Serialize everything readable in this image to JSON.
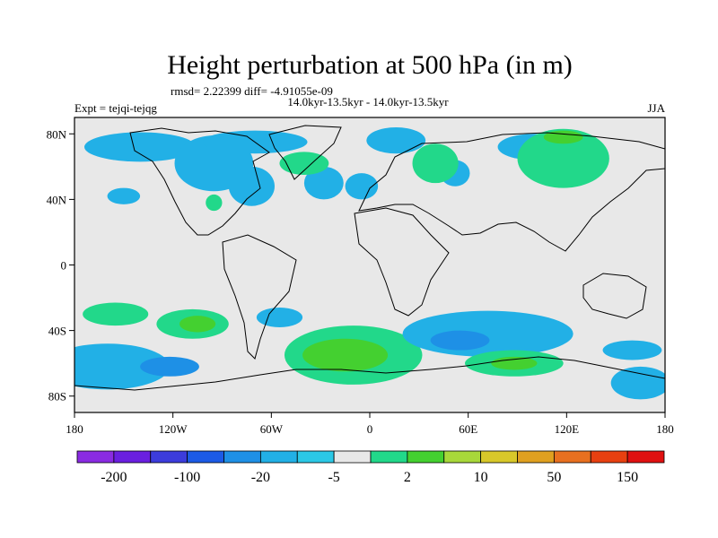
{
  "chart_data": {
    "type": "heatmap",
    "title": "Height perturbation at 500 hPa (in m)",
    "stats": "rmsd= 2.22399 diff= -4.91055e-09",
    "periods": "14.0kyr-13.5kyr - 14.0kyr-13.5kyr",
    "experiment": "Expt = tejqi-tejqg",
    "season": "JJA",
    "x_ticks": [
      "180",
      "120W",
      "60W",
      "0",
      "60E",
      "120E",
      "180"
    ],
    "x_values": [
      -180,
      -120,
      -60,
      0,
      60,
      120,
      180
    ],
    "y_ticks": [
      "80N",
      "40N",
      "0",
      "40S",
      "80S"
    ],
    "y_values": [
      80,
      40,
      0,
      -40,
      -80
    ],
    "lon_range": [
      -180,
      180
    ],
    "lat_range": [
      -90,
      90
    ],
    "colorbar_labels": [
      "-200",
      "-100",
      "-20",
      "-5",
      "2",
      "10",
      "50",
      "150"
    ],
    "colorbar_colors": [
      "#8a2be2",
      "#6a1fe0",
      "#3c3cdc",
      "#1c5ae6",
      "#1e90e6",
      "#22b0e6",
      "#2bc8e6",
      "#e8e8e8",
      "#22d88a",
      "#44d030",
      "#a8d83a",
      "#d8c82a",
      "#e0a020",
      "#e87020",
      "#e84010",
      "#e01010"
    ],
    "anomalies": [
      {
        "lon": -140,
        "lat": 72,
        "rlon": 34,
        "rlat": 9,
        "level": 5
      },
      {
        "lon": -95,
        "lat": 62,
        "rlon": 24,
        "rlat": 17,
        "level": 5
      },
      {
        "lon": -72,
        "lat": 48,
        "rlon": 14,
        "rlat": 12,
        "level": 5
      },
      {
        "lon": -70,
        "lat": 75,
        "rlon": 32,
        "rlat": 7,
        "level": 5
      },
      {
        "lon": -150,
        "lat": 42,
        "rlon": 10,
        "rlat": 5,
        "level": 5
      },
      {
        "lon": -28,
        "lat": 50,
        "rlon": 12,
        "rlat": 10,
        "level": 5
      },
      {
        "lon": -5,
        "lat": 48,
        "rlon": 10,
        "rlat": 8,
        "level": 5
      },
      {
        "lon": 16,
        "lat": 76,
        "rlon": 18,
        "rlat": 8,
        "level": 5
      },
      {
        "lon": 52,
        "lat": 56,
        "rlon": 9,
        "rlat": 8,
        "level": 5
      },
      {
        "lon": 100,
        "lat": 72,
        "rlon": 22,
        "rlat": 8,
        "level": 5
      },
      {
        "lon": -40,
        "lat": 62,
        "rlon": 15,
        "rlat": 7,
        "level": 8
      },
      {
        "lon": 40,
        "lat": 62,
        "rlon": 14,
        "rlat": 12,
        "level": 8
      },
      {
        "lon": 118,
        "lat": 65,
        "rlon": 28,
        "rlat": 18,
        "level": 8
      },
      {
        "lon": 118,
        "lat": 78,
        "rlon": 12,
        "rlat": 4,
        "level": 9
      },
      {
        "lon": -95,
        "lat": 38,
        "rlon": 5,
        "rlat": 5,
        "level": 8
      },
      {
        "lon": -160,
        "lat": -62,
        "rlon": 38,
        "rlat": 14,
        "level": 5
      },
      {
        "lon": -122,
        "lat": -62,
        "rlon": 18,
        "rlat": 6,
        "level": 4
      },
      {
        "lon": -108,
        "lat": -36,
        "rlon": 22,
        "rlat": 9,
        "level": 8
      },
      {
        "lon": -105,
        "lat": -36,
        "rlon": 11,
        "rlat": 5,
        "level": 9
      },
      {
        "lon": -155,
        "lat": -30,
        "rlon": 20,
        "rlat": 7,
        "level": 8
      },
      {
        "lon": -55,
        "lat": -32,
        "rlon": 14,
        "rlat": 6,
        "level": 5
      },
      {
        "lon": -10,
        "lat": -55,
        "rlon": 42,
        "rlat": 18,
        "level": 8
      },
      {
        "lon": -15,
        "lat": -55,
        "rlon": 26,
        "rlat": 10,
        "level": 9
      },
      {
        "lon": 72,
        "lat": -42,
        "rlon": 52,
        "rlat": 14,
        "level": 5
      },
      {
        "lon": 55,
        "lat": -46,
        "rlon": 18,
        "rlat": 6,
        "level": 4
      },
      {
        "lon": 88,
        "lat": -60,
        "rlon": 30,
        "rlat": 8,
        "level": 8
      },
      {
        "lon": 88,
        "lat": -60,
        "rlon": 14,
        "rlat": 4,
        "level": 9
      },
      {
        "lon": 165,
        "lat": -72,
        "rlon": 18,
        "rlat": 10,
        "level": 5
      },
      {
        "lon": 160,
        "lat": -52,
        "rlon": 18,
        "rlat": 6,
        "level": 5
      }
    ]
  }
}
